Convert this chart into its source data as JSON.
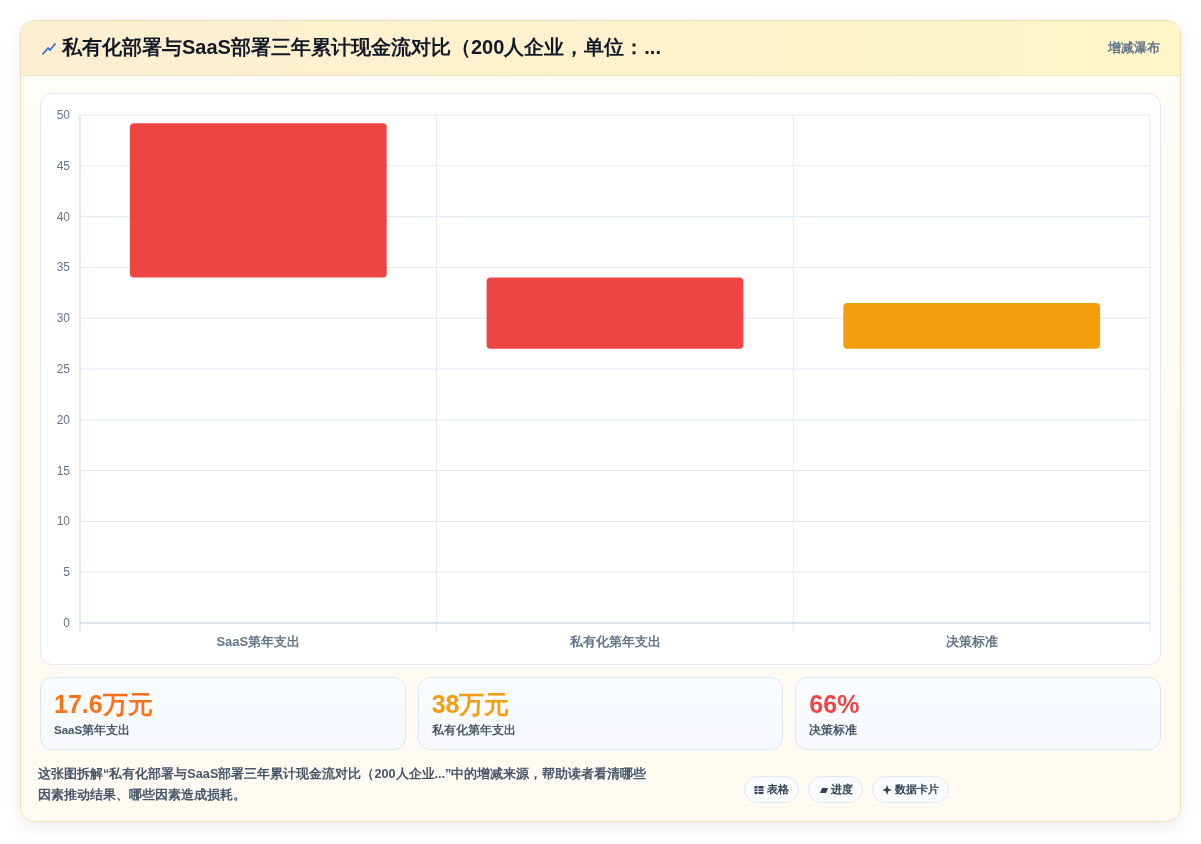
{
  "chart_data": [
    {
      "type": "bar",
      "title": "私有化部署与SaaS部署三年累计现金流对比（200人企业，单位：...",
      "annotations": [
        "增减瀑布"
      ],
      "categories": [
        "SaaS第年支出",
        "私有化第年支出",
        "决策标准"
      ],
      "values": [
        15.2,
        7,
        4.5
      ],
      "base": [
        34,
        27,
        27
      ],
      "colors": [
        "#ef4444",
        "#ef4444",
        "#f59e0b"
      ],
      "ylim": [
        0,
        50
      ],
      "yticks": [
        0,
        5,
        10,
        15,
        20,
        25,
        30,
        35,
        40,
        45,
        50
      ],
      "grid": true
    },
    {
      "type": "other",
      "annotations": [
        "17.6万元",
        "SaaS第年支出",
        "38万元",
        "私有化第年支出",
        "66%",
        "决策标准"
      ],
      "colors": [
        "#f97316",
        "#f59e0b",
        "#ef4444"
      ]
    },
    {
      "type": "other",
      "annotations": [
        "这张图拆解“私有化部署与SaaS部署三年累计现金流对比（200人企业...”中的增减来源，帮助读者看清哪些因素推动结果、哪些因素造成损耗。",
        "表格",
        "进度",
        "数据卡片"
      ]
    }
  ]
}
